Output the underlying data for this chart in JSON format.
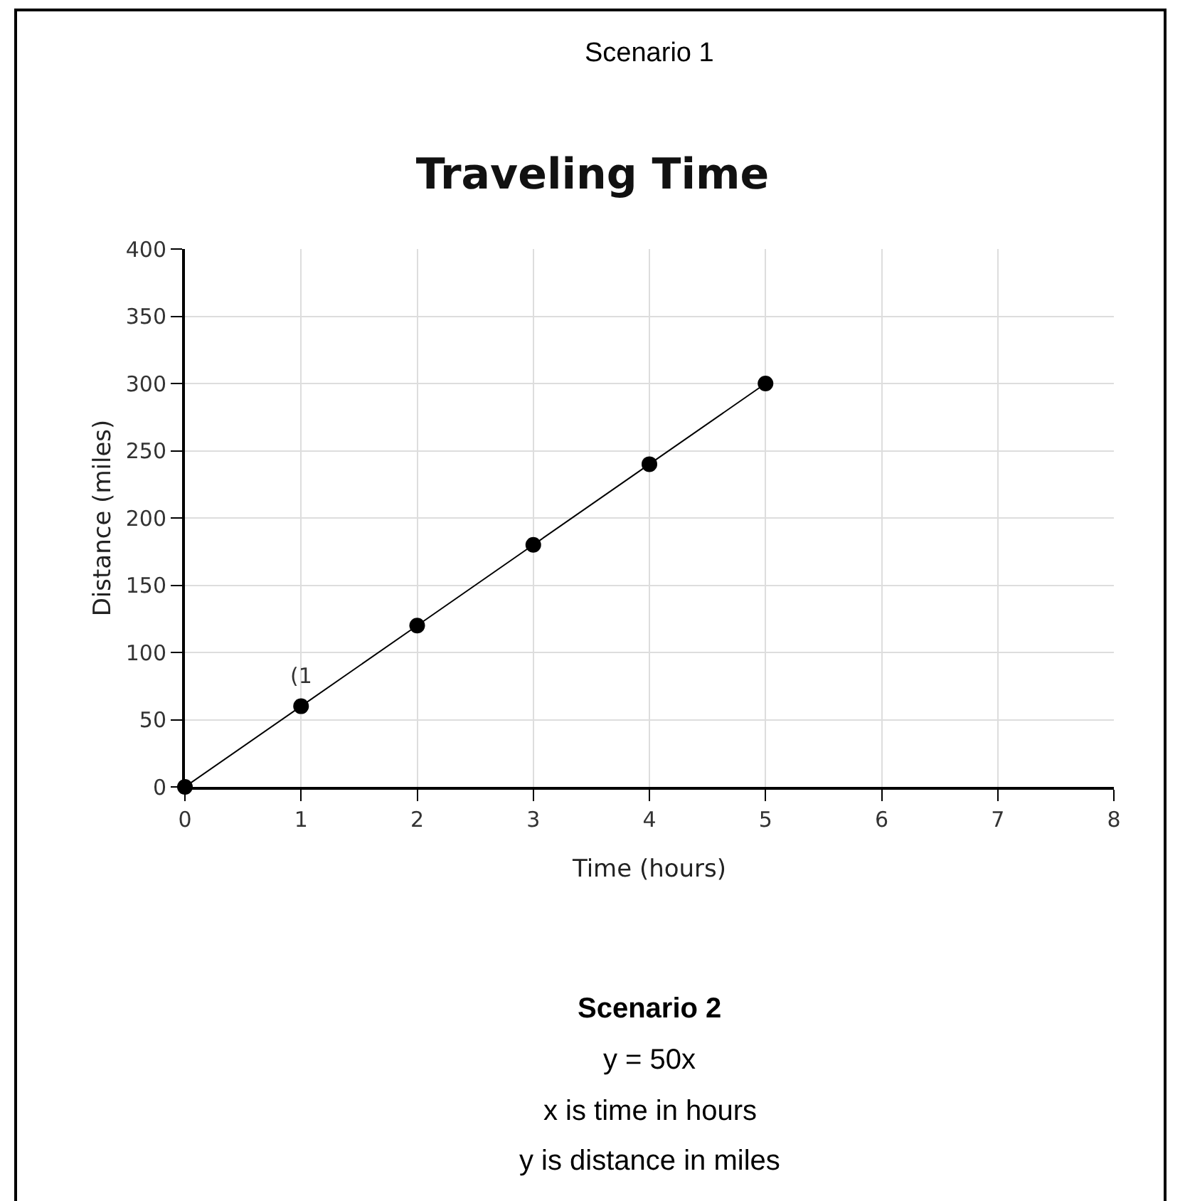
{
  "chart_data": {
    "type": "line",
    "title": "Traveling Time",
    "xlabel": "Time (hours)",
    "ylabel": "Distance (miles)",
    "x": [
      0,
      1,
      2,
      3,
      4,
      5
    ],
    "series": [
      {
        "color": "#000000",
        "values": [
          0,
          60,
          120,
          180,
          240,
          300
        ]
      }
    ],
    "xlim": [
      0,
      8
    ],
    "xticks": [
      0,
      1,
      2,
      3,
      4,
      5,
      6,
      7,
      8
    ],
    "ylim": [
      0,
      400
    ],
    "yticks": [
      0,
      50,
      100,
      150,
      200,
      250,
      300,
      350,
      400
    ],
    "grid": true,
    "marker": "circle",
    "line_style": "solid",
    "annotations": [
      "Scenario 1",
      {
        "text": "(1",
        "x": 1,
        "y": 60
      },
      "Scenario 2",
      "y = 50x",
      "x is time in hours",
      "y is distance in miles"
    ]
  }
}
